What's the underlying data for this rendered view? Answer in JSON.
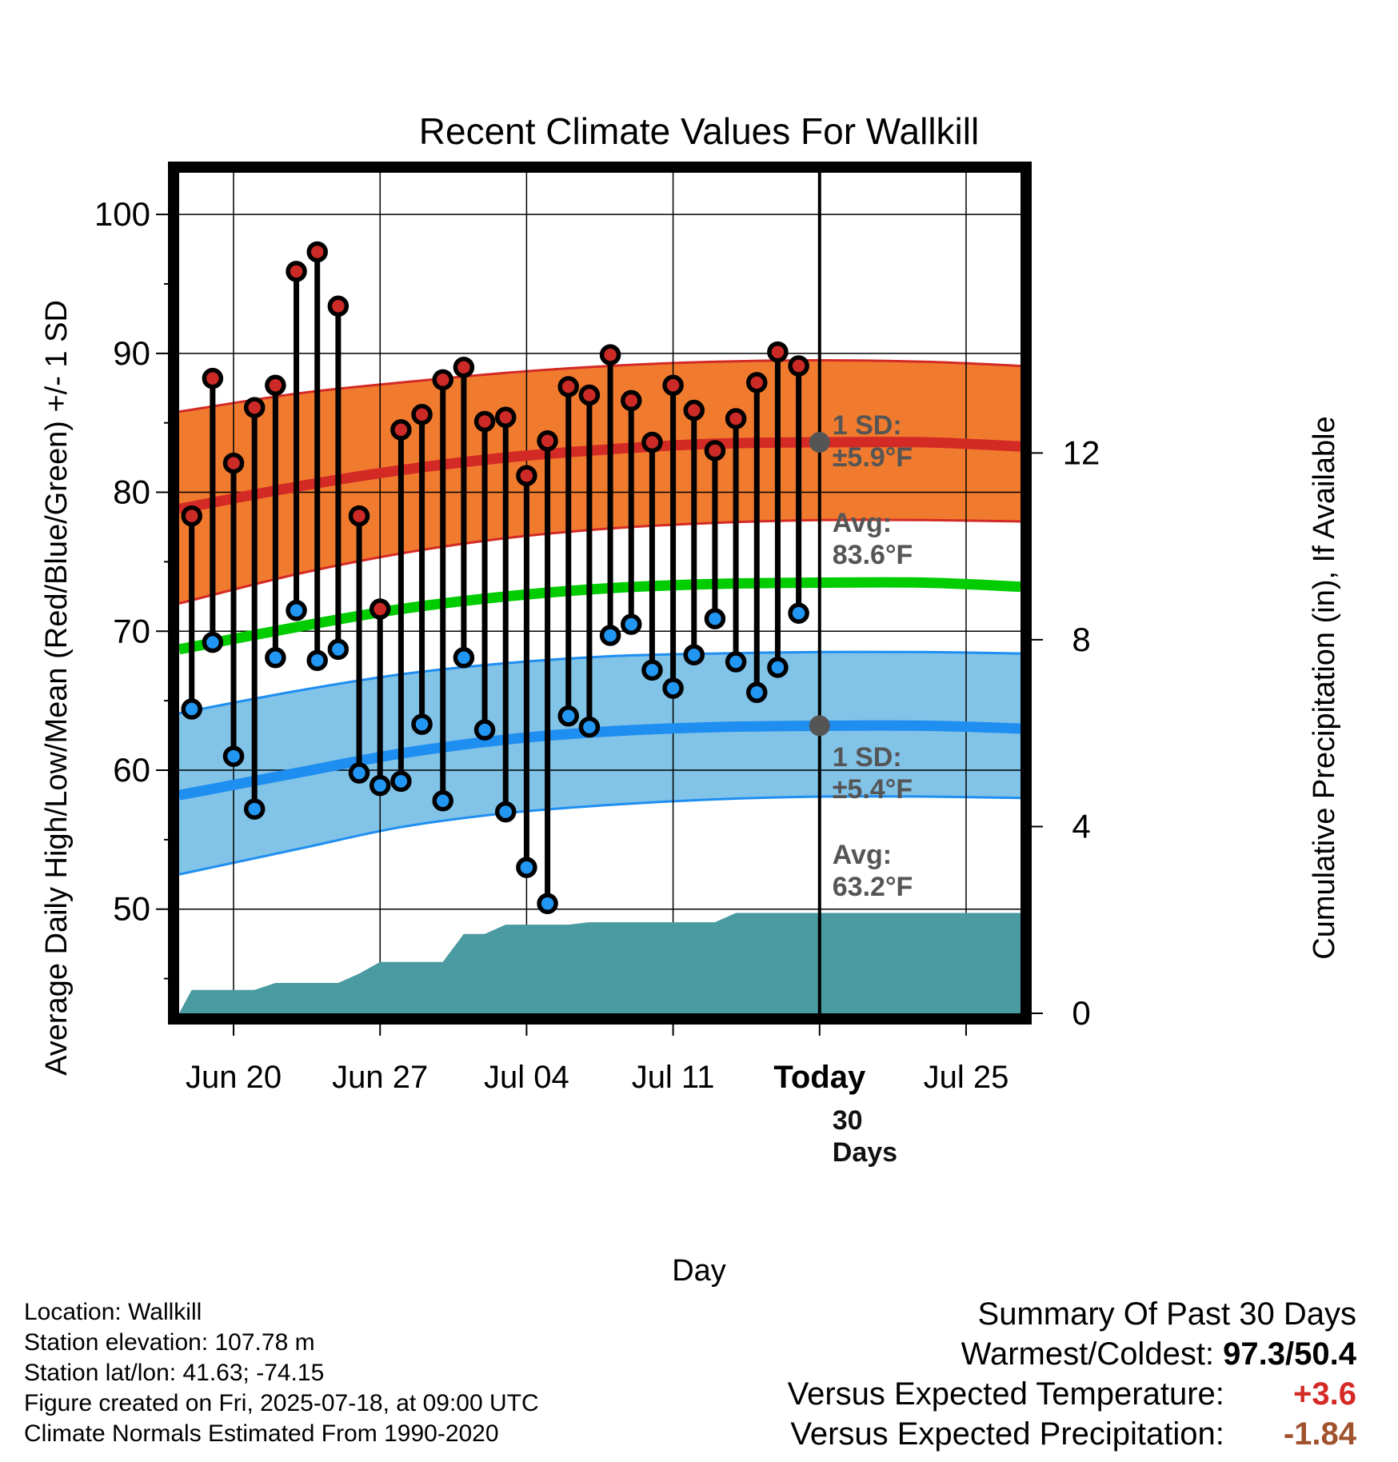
{
  "colors": {
    "high_band": "#f07b2e",
    "high_line": "#d42a25",
    "low_band": "#82c3e8",
    "low_line": "#1e8ef0",
    "mean_line": "#00cc00",
    "precip": "#4a9aa1",
    "high_dot": "#cc2a26",
    "low_dot": "#2196f3",
    "avg_dot": "#555555",
    "annotation": "#555555",
    "warmer": "#d42a25",
    "drier": "#a0522d"
  },
  "chart_data": {
    "type": "line",
    "title": "Recent Climate Values For Wallkill",
    "xlabel": "Day",
    "ylabel_left": "Average Daily High/Low/Mean (Red/Blue/Green) +/- 1 SD",
    "ylabel_right": "Cumulative Precipitation (in), If Available",
    "x_ticks": [
      {
        "label": "Jun 20",
        "day": 2
      },
      {
        "label": "Jun 27",
        "day": 9
      },
      {
        "label": "Jul 04",
        "day": 16
      },
      {
        "label": "Jul 11",
        "day": 23
      },
      {
        "label": "Today",
        "day": 30
      },
      {
        "label": "Jul 25",
        "day": 37
      }
    ],
    "xlim": [
      -0.6,
      39.6
    ],
    "ylim_left": [
      42.5,
      103
    ],
    "yticks_left": [
      50,
      60,
      70,
      80,
      90,
      100
    ],
    "ylim_right": [
      0,
      18
    ],
    "yticks_right": [
      0,
      4,
      8,
      12
    ],
    "grid": true,
    "days": [
      0,
      1,
      2,
      3,
      4,
      5,
      6,
      7,
      8,
      9,
      10,
      11,
      12,
      13,
      14,
      15,
      16,
      17,
      18,
      19,
      20,
      21,
      22,
      23,
      24,
      25,
      26,
      27,
      28,
      29
    ],
    "highs": [
      78.3,
      88.2,
      82.1,
      86.1,
      87.7,
      95.9,
      97.3,
      93.4,
      78.3,
      71.6,
      84.5,
      85.6,
      88.1,
      89.0,
      85.1,
      85.4,
      81.2,
      83.7,
      87.6,
      87.0,
      89.9,
      86.6,
      83.6,
      87.7,
      85.9,
      83.0,
      85.3,
      87.9,
      90.1,
      89.1
    ],
    "lows": [
      64.4,
      69.2,
      61.0,
      57.2,
      68.1,
      71.5,
      67.9,
      68.7,
      59.8,
      58.9,
      59.2,
      63.3,
      57.8,
      68.1,
      62.9,
      57.0,
      53.0,
      50.4,
      63.9,
      63.1,
      69.7,
      70.5,
      67.2,
      65.9,
      68.3,
      70.9,
      67.8,
      65.6,
      67.4,
      71.3
    ],
    "normals": {
      "x": [
        -0.6,
        5,
        10,
        15,
        20,
        25,
        30,
        35,
        39.6
      ],
      "avg_high": [
        78.8,
        80.4,
        81.6,
        82.5,
        83.1,
        83.5,
        83.6,
        83.6,
        83.3
      ],
      "high_sd_upper": [
        85.8,
        87.1,
        87.9,
        88.6,
        89.1,
        89.4,
        89.5,
        89.4,
        89.1
      ],
      "high_sd_lower": [
        72.0,
        74.1,
        75.6,
        76.7,
        77.4,
        77.8,
        78.0,
        78.0,
        77.9
      ],
      "avg_mean": [
        68.7,
        70.3,
        71.6,
        72.5,
        73.1,
        73.4,
        73.5,
        73.5,
        73.2
      ],
      "avg_low": [
        58.2,
        59.8,
        61.2,
        62.2,
        62.8,
        63.1,
        63.2,
        63.2,
        63.0
      ],
      "low_sd_upper": [
        64.1,
        65.7,
        66.9,
        67.7,
        68.2,
        68.4,
        68.5,
        68.5,
        68.4
      ],
      "low_sd_lower": [
        52.5,
        54.3,
        55.9,
        56.9,
        57.5,
        57.9,
        58.1,
        58.1,
        58.0
      ]
    },
    "precip_cumulative": {
      "x": [
        -0.6,
        0,
        1,
        2,
        3,
        4,
        5,
        6,
        7,
        8,
        9,
        10,
        11,
        12,
        13,
        14,
        15,
        16,
        17,
        18,
        19,
        20,
        21,
        22,
        23,
        24,
        25,
        26,
        27,
        28,
        29,
        30,
        39.6
      ],
      "values": [
        0.0,
        0.5,
        0.5,
        0.5,
        0.5,
        0.65,
        0.65,
        0.65,
        0.65,
        0.85,
        1.1,
        1.1,
        1.1,
        1.1,
        1.7,
        1.7,
        1.9,
        1.9,
        1.9,
        1.9,
        1.95,
        1.95,
        1.95,
        1.95,
        1.95,
        1.95,
        1.95,
        2.15,
        2.15,
        2.15,
        2.15,
        2.15,
        2.15
      ]
    },
    "today_day": 30,
    "annotations": {
      "high_sd": [
        "1 SD:",
        "±5.9°F"
      ],
      "high_avg": [
        "Avg:",
        "83.6°F"
      ],
      "low_sd": [
        "1 SD:",
        "±5.4°F"
      ],
      "low_avg": [
        "Avg:",
        "63.2°F"
      ],
      "precip": [
        "30",
        "Days"
      ]
    }
  },
  "info": {
    "location": "Location: Wallkill",
    "elevation": "Station elevation: 107.78 m",
    "latlon": "Station lat/lon: 41.63; -74.15",
    "created": "Figure created on Fri, 2025-07-18, at 09:00 UTC",
    "normals": "Climate Normals Estimated From 1990-2020"
  },
  "summary": {
    "title": "Summary Of Past 30 Days",
    "warmest_coldest_label": "Warmest/Coldest:",
    "warmest_coldest_value": "97.3/50.4",
    "temp_label": "Versus Expected Temperature:",
    "temp_value": "+3.6",
    "precip_label": "Versus Expected Precipitation:",
    "precip_value": "-1.84"
  }
}
